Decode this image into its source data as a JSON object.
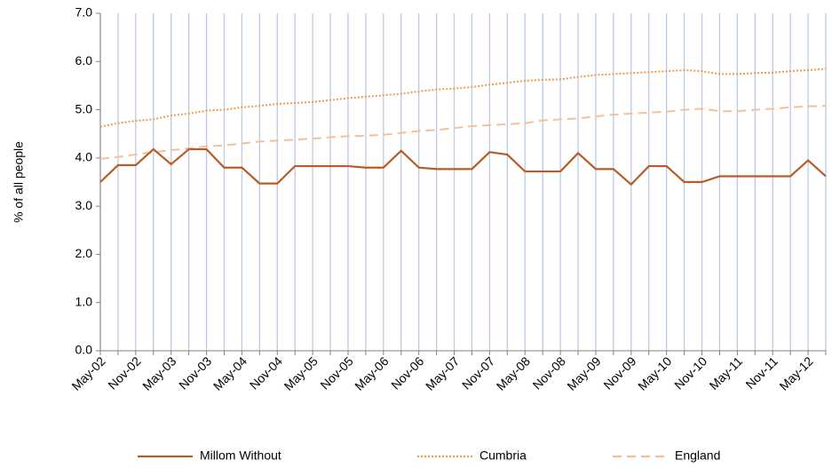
{
  "chart_data": {
    "type": "line",
    "y_label": "% of all people",
    "categories": [
      "May-02",
      null,
      "Nov-02",
      null,
      "May-03",
      null,
      "Nov-03",
      null,
      "May-04",
      null,
      "Nov-04",
      null,
      "May-05",
      null,
      "Nov-05",
      null,
      "May-06",
      null,
      "Nov-06",
      null,
      "May-07",
      null,
      "Nov-07",
      null,
      "May-08",
      null,
      "Nov-08",
      null,
      "May-09",
      null,
      "Nov-09",
      null,
      "May-10",
      null,
      "Nov-10",
      null,
      "May-11",
      null,
      "Nov-11",
      null,
      "May-12",
      null
    ],
    "series": [
      {
        "name": "Millom Without",
        "color": "#b85c26",
        "style": "solid",
        "values": [
          3.5,
          3.85,
          3.85,
          4.18,
          3.87,
          4.18,
          4.18,
          3.8,
          3.8,
          3.47,
          3.47,
          3.83,
          3.83,
          3.83,
          3.83,
          3.8,
          3.8,
          4.15,
          3.8,
          3.77,
          3.77,
          3.77,
          4.12,
          4.07,
          3.72,
          3.72,
          3.72,
          4.1,
          3.77,
          3.77,
          3.45,
          3.83,
          3.83,
          3.5,
          3.5,
          3.62,
          3.62,
          3.62,
          3.62,
          3.62,
          3.95,
          3.62
        ]
      },
      {
        "name": "Cumbria",
        "color": "#ee9a4c",
        "style": "dotted",
        "values": [
          4.65,
          4.72,
          4.77,
          4.8,
          4.88,
          4.92,
          4.98,
          5.0,
          5.05,
          5.08,
          5.12,
          5.14,
          5.16,
          5.2,
          5.24,
          5.27,
          5.3,
          5.33,
          5.38,
          5.42,
          5.44,
          5.47,
          5.52,
          5.56,
          5.6,
          5.62,
          5.63,
          5.68,
          5.72,
          5.74,
          5.76,
          5.78,
          5.8,
          5.82,
          5.8,
          5.74,
          5.74,
          5.76,
          5.77,
          5.8,
          5.82,
          5.85
        ]
      },
      {
        "name": "England",
        "color": "#f5bf98",
        "style": "dashed",
        "values": [
          3.98,
          4.02,
          4.07,
          4.12,
          4.16,
          4.2,
          4.24,
          4.26,
          4.3,
          4.34,
          4.36,
          4.38,
          4.4,
          4.43,
          4.45,
          4.46,
          4.48,
          4.52,
          4.56,
          4.58,
          4.62,
          4.66,
          4.68,
          4.7,
          4.72,
          4.78,
          4.8,
          4.82,
          4.86,
          4.9,
          4.92,
          4.94,
          4.96,
          5.0,
          5.02,
          4.97,
          4.97,
          5.0,
          5.02,
          5.05,
          5.07,
          5.08
        ]
      }
    ],
    "ylim": [
      0,
      7
    ],
    "yticks": [
      {
        "value": 0,
        "label": "0.0"
      },
      {
        "value": 1,
        "label": "1.0"
      },
      {
        "value": 2,
        "label": "2.0"
      },
      {
        "value": 3,
        "label": "3.0"
      },
      {
        "value": 4,
        "label": "4.0"
      },
      {
        "value": 5,
        "label": "5.0"
      },
      {
        "value": 6,
        "label": "6.0"
      },
      {
        "value": 7,
        "label": "7.0"
      }
    ],
    "grid": true,
    "legend": "bottom"
  }
}
